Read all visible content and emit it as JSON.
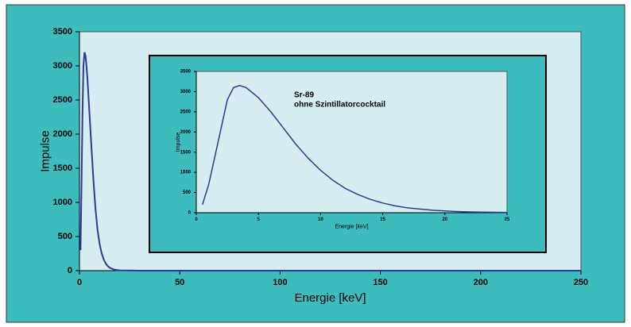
{
  "chart_data": [
    {
      "type": "line",
      "x_label": "Energie [keV]",
      "y_label": "Impulse",
      "xlim": [
        0,
        250
      ],
      "xticks": [
        0,
        50,
        100,
        150,
        200,
        250
      ],
      "ylim": [
        0,
        3500
      ],
      "yticks": [
        0,
        500,
        1000,
        1500,
        2000,
        2500,
        3000,
        3500
      ],
      "series": [
        {
          "color": "#2b3b9b",
          "x": [
            0.5,
            1,
            1.5,
            2,
            2.5,
            3,
            3.5,
            4,
            5,
            6,
            7,
            8,
            9,
            10,
            11,
            12,
            13,
            14,
            15,
            16,
            17,
            18,
            19,
            20,
            25,
            30,
            50,
            100,
            150,
            200,
            250
          ],
          "values": [
            300,
            1200,
            2300,
            3000,
            3200,
            3150,
            3000,
            2800,
            2300,
            1800,
            1300,
            900,
            600,
            400,
            260,
            170,
            110,
            70,
            45,
            30,
            20,
            12,
            8,
            5,
            2,
            0,
            0,
            0,
            0,
            0,
            0
          ]
        }
      ]
    },
    {
      "type": "line",
      "x_label": "Energie [keV]",
      "y_label": "Impulse",
      "annotations": [
        "Sr-89",
        "ohne Szintillatorcocktail"
      ],
      "xlim": [
        0,
        25
      ],
      "xticks": [
        0,
        5,
        10,
        15,
        20,
        25
      ],
      "ylim": [
        0,
        3500
      ],
      "yticks": [
        0,
        500,
        1000,
        1500,
        2000,
        2500,
        3000,
        3500
      ],
      "series": [
        {
          "color": "#2b3b9b",
          "x": [
            0.5,
            1,
            1.5,
            2,
            2.5,
            3,
            3.5,
            4,
            5,
            6,
            7,
            8,
            9,
            10,
            11,
            12,
            13,
            14,
            15,
            16,
            17,
            18,
            19,
            20,
            21,
            22,
            23,
            24,
            25
          ],
          "values": [
            200,
            700,
            1400,
            2100,
            2800,
            3100,
            3150,
            3100,
            2850,
            2500,
            2100,
            1700,
            1350,
            1050,
            800,
            600,
            450,
            330,
            240,
            170,
            120,
            90,
            60,
            45,
            30,
            20,
            15,
            10,
            8
          ]
        }
      ]
    }
  ]
}
